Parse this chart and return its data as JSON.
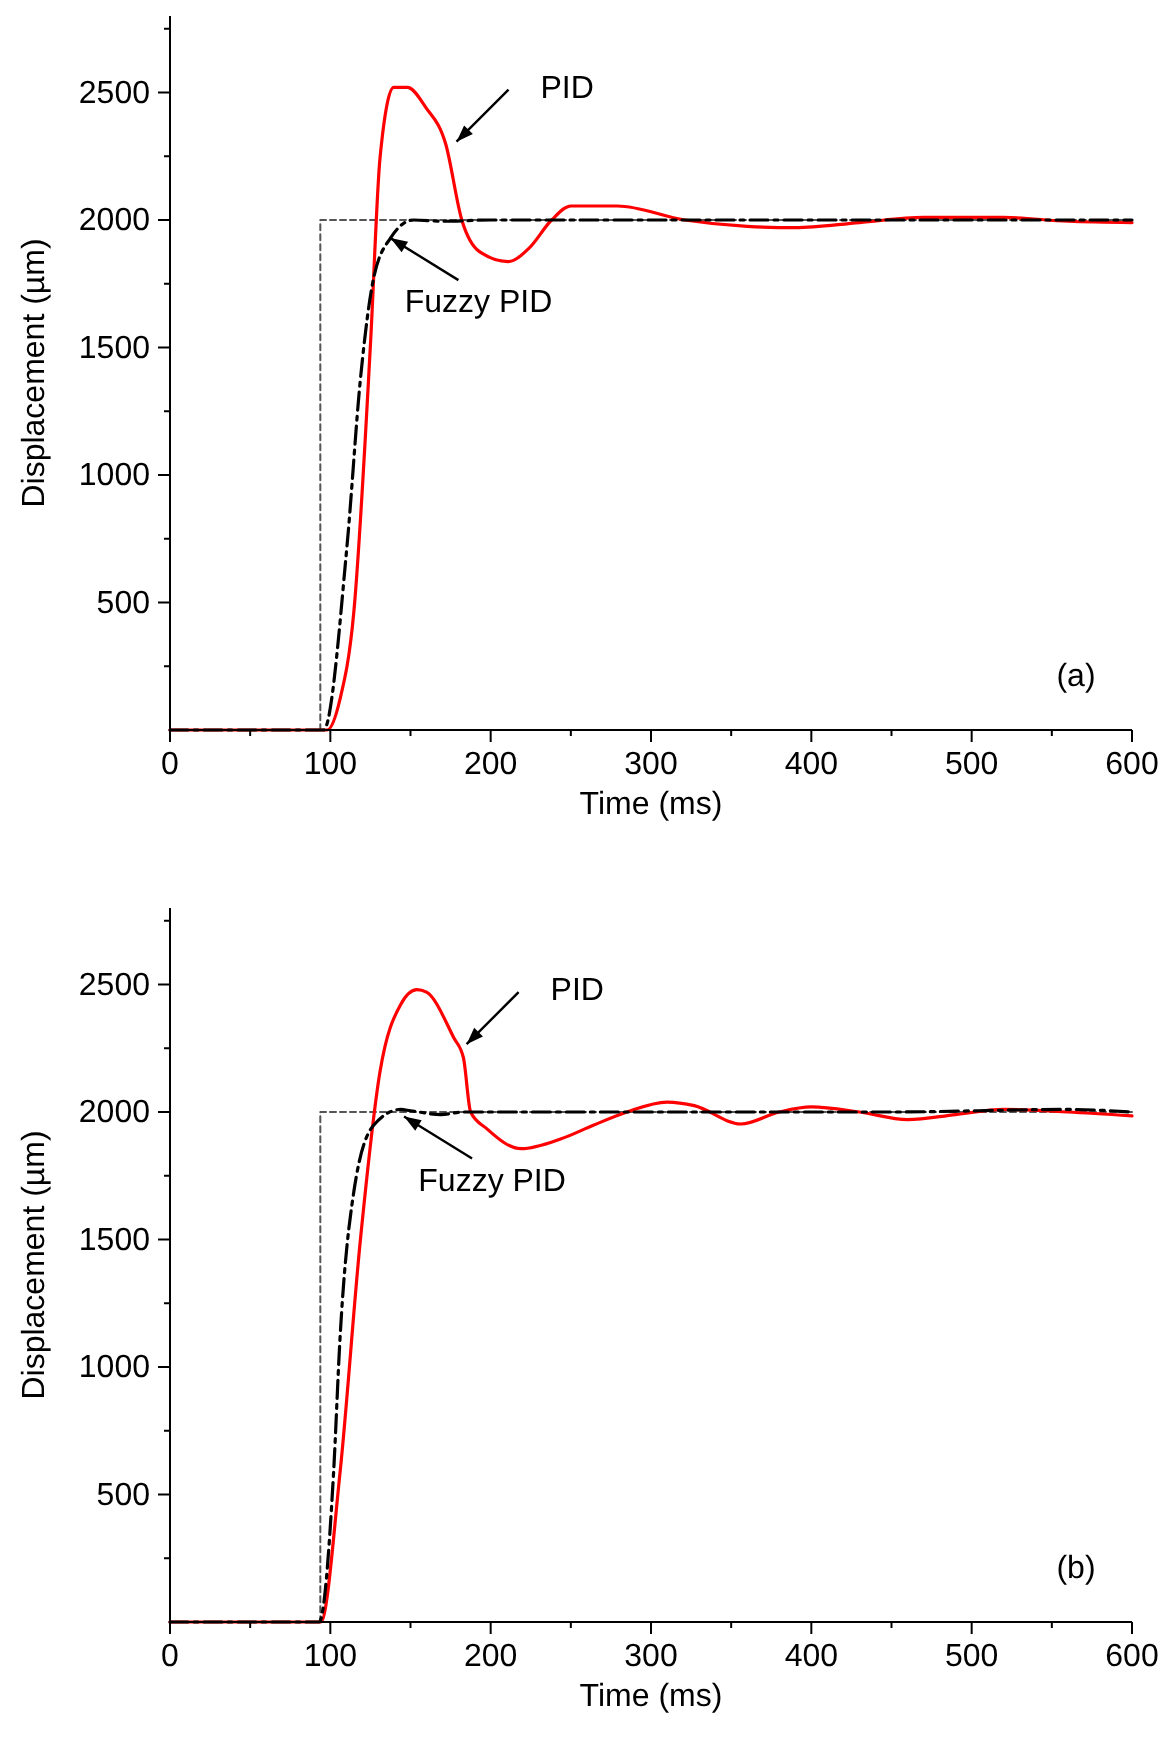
{
  "chart_data": [
    {
      "type": "line",
      "xlabel": "Time (ms)",
      "ylabel": "Displacement (µm)",
      "xlim": [
        0,
        600
      ],
      "ylim": [
        0,
        2800
      ],
      "xticks": [
        0,
        100,
        200,
        300,
        400,
        500,
        600
      ],
      "yticks": [
        500,
        1000,
        1500,
        2000,
        2500
      ],
      "grid": false,
      "marker": "none",
      "annotations": [
        {
          "text": "PID",
          "x": 178.7,
          "y": 2307
        },
        {
          "text": "Fuzzy PID",
          "x": 137.5,
          "y": 1929
        },
        "(a)"
      ],
      "series": [
        {
          "color": "#555555",
          "line_style": "dotted",
          "x": [
            0,
            93.75,
            93.75,
            600
          ],
          "values": [
            0,
            0,
            2000,
            2000
          ]
        },
        {
          "color": "#ff0000",
          "line_style": "solid",
          "x": [
            0,
            98,
            106,
            114.6,
            125,
            131,
            139.6,
            148,
            159.6,
            172,
            182,
            193,
            211,
            224,
            238,
            250,
            279,
            321,
            360,
            390,
            430,
            470,
            520,
            560,
            600
          ],
          "values": [
            0,
            0,
            120,
            459,
            1509,
            2244,
            2520,
            2520,
            2441,
            2297,
            2000,
            1876,
            1837,
            1890,
            2000,
            2055,
            2055,
            2000,
            1975,
            1970,
            1990,
            2010,
            2010,
            1995,
            1990
          ]
        },
        {
          "color": "#000000",
          "line_style": "dashed",
          "x": [
            0,
            95.8,
            110.4,
            118.8,
            127,
            137.5,
            152,
            170,
            200,
            300,
            400,
            500,
            600
          ],
          "values": [
            0,
            0,
            722,
            1378,
            1772,
            1929,
            2000,
            1995,
            2000,
            2000,
            2000,
            2000,
            2000
          ]
        }
      ]
    },
    {
      "type": "line",
      "xlabel": "Time (ms)",
      "ylabel": "Displacement (µm)",
      "xlim": [
        0,
        600
      ],
      "ylim": [
        0,
        2800
      ],
      "xticks": [
        0,
        100,
        200,
        300,
        400,
        500,
        600
      ],
      "yticks": [
        500,
        1000,
        1500,
        2000,
        2500
      ],
      "grid": false,
      "marker": "none",
      "annotations": [
        {
          "text": "PID",
          "x": 185,
          "y": 2266
        },
        {
          "text": "Fuzzy PID",
          "x": 146,
          "y": 1982
        },
        "(b)"
      ],
      "series": [
        {
          "color": "#555555",
          "line_style": "dotted",
          "x": [
            0,
            93.75,
            93.75,
            600
          ],
          "values": [
            0,
            0,
            2000,
            2000
          ]
        },
        {
          "color": "#ff0000",
          "line_style": "solid",
          "x": [
            0,
            94,
            106,
            118.8,
            131,
            143.8,
            154,
            160,
            177,
            183,
            187.5,
            197.5,
            219,
            244,
            264,
            285,
            310,
            327,
            356,
            380,
            400,
            430,
            460,
            490,
            520,
            560,
            600
          ],
          "values": [
            0,
            0,
            583,
            1502,
            2159,
            2421,
            2480,
            2470,
            2291,
            2213,
            2000,
            1935,
            1856,
            1895,
            1948,
            2000,
            2039,
            2025,
            1953,
            2000,
            2020,
            2000,
            1970,
            1990,
            2010,
            2000,
            1985
          ]
        },
        {
          "color": "#000000",
          "line_style": "dashed",
          "x": [
            0,
            93,
            102,
            106,
            114.6,
            127,
            143.8,
            150,
            169,
            183,
            250,
            350,
            450,
            560,
            600
          ],
          "values": [
            0,
            0,
            583,
            1108,
            1685,
            1948,
            2010,
            2005,
            1990,
            2000,
            2000,
            2000,
            2000,
            2010,
            2000
          ]
        }
      ]
    }
  ]
}
